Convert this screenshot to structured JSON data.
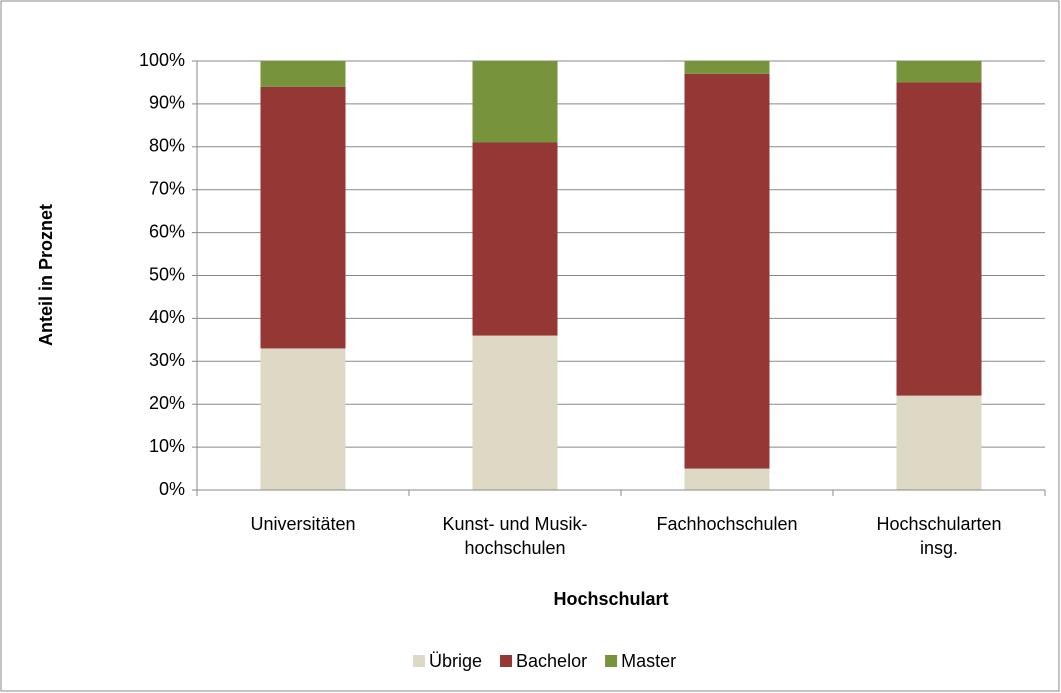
{
  "chart_data": {
    "type": "stacked_bar",
    "categories": [
      "Universitäten",
      "Kunst- und Musik-\nhochschulen",
      "Fachhochschulen",
      "Hochschularten\ninsg."
    ],
    "series": [
      {
        "name": "Übrige",
        "color": "#ddd9c4",
        "values": [
          33,
          36,
          5,
          22
        ]
      },
      {
        "name": "Bachelor",
        "color": "#953735",
        "values": [
          61,
          45,
          92,
          73
        ]
      },
      {
        "name": "Master",
        "color": "#77933c",
        "values": [
          6,
          19,
          3,
          5
        ]
      }
    ],
    "ylim": [
      0,
      100
    ],
    "yticks": [
      {
        "value": 0,
        "label": "0%"
      },
      {
        "value": 10,
        "label": "10%"
      },
      {
        "value": 20,
        "label": "20%"
      },
      {
        "value": 30,
        "label": "30%"
      },
      {
        "value": 40,
        "label": "40%"
      },
      {
        "value": 50,
        "label": "50%"
      },
      {
        "value": 60,
        "label": "60%"
      },
      {
        "value": 70,
        "label": "70%"
      },
      {
        "value": 80,
        "label": "80%"
      },
      {
        "value": 90,
        "label": "90%"
      },
      {
        "value": 100,
        "label": "100%"
      }
    ],
    "grid": true,
    "x_label": "Hochschulart",
    "y_label": "Anteil in Proznet",
    "legend": "bottom"
  }
}
